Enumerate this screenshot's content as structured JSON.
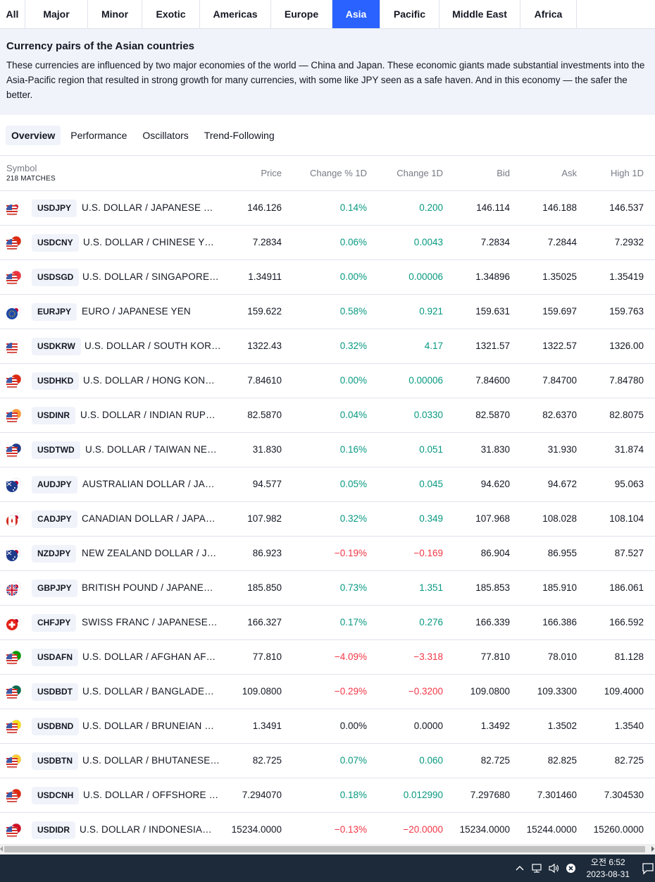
{
  "region_tabs": [
    {
      "label": "All",
      "active": false
    },
    {
      "label": "Major",
      "active": false
    },
    {
      "label": "Minor",
      "active": false
    },
    {
      "label": "Exotic",
      "active": false
    },
    {
      "label": "Americas",
      "active": false
    },
    {
      "label": "Europe",
      "active": false
    },
    {
      "label": "Asia",
      "active": true
    },
    {
      "label": "Pacific",
      "active": false
    },
    {
      "label": "Middle East",
      "active": false
    },
    {
      "label": "Africa",
      "active": false
    }
  ],
  "description": {
    "title": "Currency pairs of the Asian countries",
    "text": "These currencies are influenced by two major economies of the world — China and Japan. These economic giants made substantial investments into the Asia-Pacific region that resulted in strong growth for many currencies, with some like JPY seen as a safe haven. And in this economy — the safer the better."
  },
  "sub_tabs": [
    {
      "label": "Overview",
      "active": true
    },
    {
      "label": "Performance",
      "active": false
    },
    {
      "label": "Oscillators",
      "active": false
    },
    {
      "label": "Trend-Following",
      "active": false
    }
  ],
  "table": {
    "symbol_header": "Symbol",
    "matches": "218 MATCHES",
    "headers": {
      "price": "Price",
      "change_pct": "Change % 1D",
      "change": "Change 1D",
      "bid": "Bid",
      "ask": "Ask",
      "high": "High 1D"
    },
    "rows": [
      {
        "ticker": "USDJPY",
        "name": "U.S. DOLLAR / JAPANESE YEN",
        "price": "146.126",
        "change_pct": "0.14%",
        "change": "0.200",
        "bid": "146.114",
        "ask": "146.188",
        "high": "146.537",
        "dir": "pos",
        "flag": "us-jp"
      },
      {
        "ticker": "USDCNY",
        "name": "U.S. DOLLAR / CHINESE YUAN",
        "price": "7.2834",
        "change_pct": "0.06%",
        "change": "0.0043",
        "bid": "7.2834",
        "ask": "7.2844",
        "high": "7.2932",
        "dir": "pos",
        "flag": "us-cn"
      },
      {
        "ticker": "USDSGD",
        "name": "U.S. DOLLAR / SINGAPORE DOLLAR",
        "price": "1.34911",
        "change_pct": "0.00%",
        "change": "0.00006",
        "bid": "1.34896",
        "ask": "1.35025",
        "high": "1.35419",
        "dir": "pos",
        "flag": "us-sg"
      },
      {
        "ticker": "EURJPY",
        "name": "EURO / JAPANESE YEN",
        "price": "159.622",
        "change_pct": "0.58%",
        "change": "0.921",
        "bid": "159.631",
        "ask": "159.697",
        "high": "159.763",
        "dir": "pos",
        "flag": "eu-jp"
      },
      {
        "ticker": "USDKRW",
        "name": "U.S. DOLLAR / SOUTH KOREAN WON",
        "price": "1322.43",
        "change_pct": "0.32%",
        "change": "4.17",
        "bid": "1321.57",
        "ask": "1322.57",
        "high": "1326.00",
        "dir": "pos",
        "flag": "us-kr"
      },
      {
        "ticker": "USDHKD",
        "name": "U.S. DOLLAR / HONG KONG DOLLAR",
        "price": "7.84610",
        "change_pct": "0.00%",
        "change": "0.00006",
        "bid": "7.84600",
        "ask": "7.84700",
        "high": "7.84780",
        "dir": "pos",
        "flag": "us-hk"
      },
      {
        "ticker": "USDINR",
        "name": "U.S. DOLLAR / INDIAN RUPEE",
        "price": "82.5870",
        "change_pct": "0.04%",
        "change": "0.0330",
        "bid": "82.5870",
        "ask": "82.6370",
        "high": "82.8075",
        "dir": "pos",
        "flag": "us-in"
      },
      {
        "ticker": "USDTWD",
        "name": "U.S. DOLLAR / TAIWAN NEW DOLLAR",
        "price": "31.830",
        "change_pct": "0.16%",
        "change": "0.051",
        "bid": "31.830",
        "ask": "31.930",
        "high": "31.874",
        "dir": "pos",
        "flag": "us-tw"
      },
      {
        "ticker": "AUDJPY",
        "name": "AUSTRALIAN DOLLAR / JAPANESE YEN",
        "price": "94.577",
        "change_pct": "0.05%",
        "change": "0.045",
        "bid": "94.620",
        "ask": "94.672",
        "high": "95.063",
        "dir": "pos",
        "flag": "au-jp"
      },
      {
        "ticker": "CADJPY",
        "name": "CANADIAN DOLLAR / JAPANESE YEN",
        "price": "107.982",
        "change_pct": "0.32%",
        "change": "0.349",
        "bid": "107.968",
        "ask": "108.028",
        "high": "108.104",
        "dir": "pos",
        "flag": "ca-jp"
      },
      {
        "ticker": "NZDJPY",
        "name": "NEW ZEALAND DOLLAR / JAPANESE YEN",
        "price": "86.923",
        "change_pct": "−0.19%",
        "change": "−0.169",
        "bid": "86.904",
        "ask": "86.955",
        "high": "87.527",
        "dir": "neg",
        "flag": "nz-jp"
      },
      {
        "ticker": "GBPJPY",
        "name": "BRITISH POUND / JAPANESE YEN",
        "price": "185.850",
        "change_pct": "0.73%",
        "change": "1.351",
        "bid": "185.853",
        "ask": "185.910",
        "high": "186.061",
        "dir": "pos",
        "flag": "gb-jp"
      },
      {
        "ticker": "CHFJPY",
        "name": "SWISS FRANC / JAPANESE YEN",
        "price": "166.327",
        "change_pct": "0.17%",
        "change": "0.276",
        "bid": "166.339",
        "ask": "166.386",
        "high": "166.592",
        "dir": "pos",
        "flag": "ch-jp"
      },
      {
        "ticker": "USDAFN",
        "name": "U.S. DOLLAR / AFGHAN AFGHANI",
        "price": "77.810",
        "change_pct": "−4.09%",
        "change": "−3.318",
        "bid": "77.810",
        "ask": "78.010",
        "high": "81.128",
        "dir": "neg",
        "flag": "us-af"
      },
      {
        "ticker": "USDBDT",
        "name": "U.S. DOLLAR / BANGLADESHI TAKA",
        "price": "109.0800",
        "change_pct": "−0.29%",
        "change": "−0.3200",
        "bid": "109.0800",
        "ask": "109.3300",
        "high": "109.4000",
        "dir": "neg",
        "flag": "us-bd"
      },
      {
        "ticker": "USDBND",
        "name": "U.S. DOLLAR / BRUNEIAN DOLLAR",
        "price": "1.3491",
        "change_pct": "0.00%",
        "change": "0.0000",
        "bid": "1.3492",
        "ask": "1.3502",
        "high": "1.3540",
        "dir": "zero",
        "flag": "us-bn"
      },
      {
        "ticker": "USDBTN",
        "name": "U.S. DOLLAR / BHUTANESE NGULTRUM",
        "price": "82.725",
        "change_pct": "0.07%",
        "change": "0.060",
        "bid": "82.725",
        "ask": "82.825",
        "high": "82.725",
        "dir": "pos",
        "flag": "us-bt"
      },
      {
        "ticker": "USDCNH",
        "name": "U.S. DOLLAR / OFFSHORE CHINESE YUAN",
        "price": "7.294070",
        "change_pct": "0.18%",
        "change": "0.012990",
        "bid": "7.297680",
        "ask": "7.301460",
        "high": "7.304530",
        "dir": "pos",
        "flag": "us-cn"
      },
      {
        "ticker": "USDIDR",
        "name": "U.S. DOLLAR / INDONESIAN RUPIAH",
        "price": "15234.0000",
        "change_pct": "−0.13%",
        "change": "−20.0000",
        "bid": "15234.0000",
        "ask": "15244.0000",
        "high": "15260.0000",
        "dir": "neg",
        "flag": "us-id"
      }
    ]
  },
  "taskbar": {
    "time": "오전 6:52",
    "date": "2023-08-31"
  },
  "colors": {
    "accent": "#2962ff",
    "positive": "#089981",
    "negative": "#f23645",
    "panel": "#f0f3fa",
    "taskbar": "#1c2a3a"
  }
}
